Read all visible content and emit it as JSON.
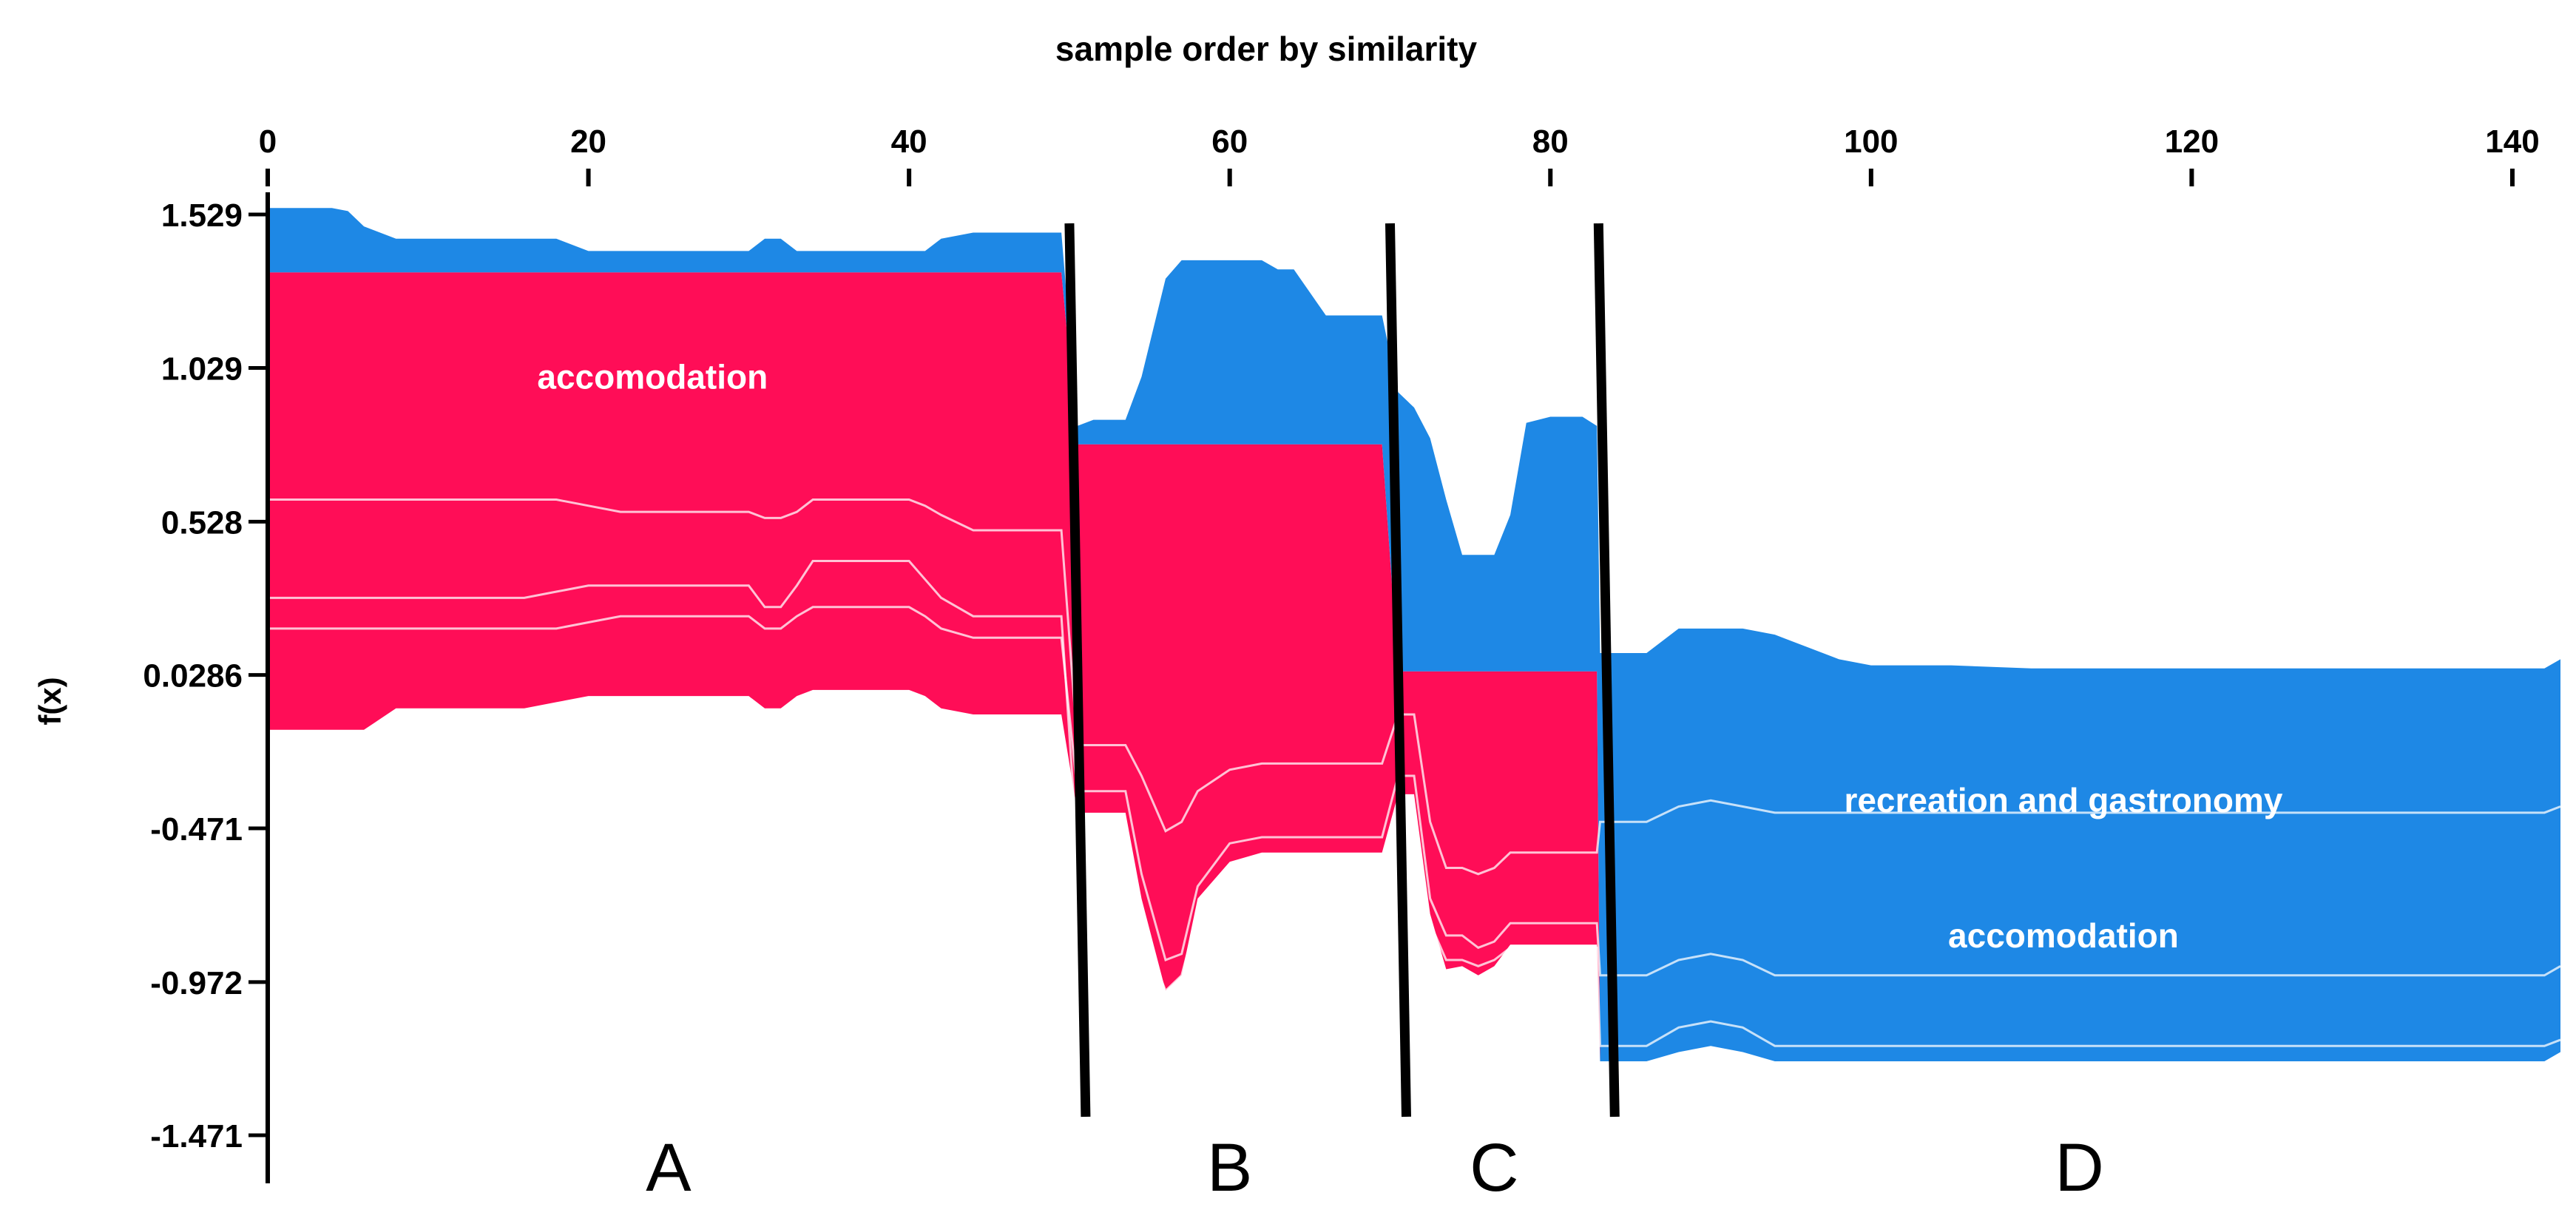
{
  "chart_data": {
    "type": "area",
    "title": "sample order by similarity",
    "xlabel": "",
    "ylabel": "f(x)",
    "xlim": [
      0,
      143
    ],
    "ylim": [
      -1.471,
      1.529
    ],
    "x_ticks": [
      0,
      20,
      40,
      60,
      80,
      100,
      120,
      140
    ],
    "y_ticks": [
      "1.529",
      "1.029",
      "0.528",
      "0.0286",
      "-0.471",
      "-0.972",
      "-1.471"
    ],
    "y_tick_values": [
      1.529,
      1.029,
      0.528,
      0.0286,
      -0.471,
      -0.972,
      -1.471
    ],
    "colors": {
      "positive": "#ff0d57",
      "negative": "#1e88e5",
      "separator": "#ffffff"
    },
    "x": [
      0,
      2,
      4,
      5,
      6,
      8,
      12,
      16,
      18,
      20,
      22,
      24,
      26,
      28,
      30,
      31,
      32,
      33,
      34,
      36,
      38,
      40,
      41,
      42,
      44,
      46,
      48,
      49.5,
      50.5,
      51.5,
      52.5,
      53.5,
      54.5,
      56,
      57,
      58,
      60,
      62,
      63,
      64,
      66,
      68,
      69.5,
      70.5,
      71.5,
      72.5,
      73.5,
      74.5,
      75.5,
      76.5,
      77.5,
      78.5,
      80,
      82,
      82.9,
      83.1,
      84,
      86,
      88,
      90,
      92,
      94,
      96,
      98,
      100,
      105,
      110,
      115,
      120,
      125,
      130,
      135,
      140,
      142,
      143
    ],
    "series": [
      {
        "name": "positive_upper",
        "values": [
          1.34,
          1.34,
          1.34,
          1.34,
          1.34,
          1.34,
          1.34,
          1.34,
          1.34,
          1.34,
          1.34,
          1.34,
          1.34,
          1.34,
          1.34,
          1.34,
          1.34,
          1.34,
          1.34,
          1.34,
          1.34,
          1.34,
          1.34,
          1.34,
          1.34,
          1.34,
          1.34,
          1.34,
          0.78,
          0.78,
          0.78,
          0.78,
          0.78,
          0.78,
          0.78,
          0.78,
          0.78,
          0.78,
          0.78,
          0.78,
          0.78,
          0.78,
          0.78,
          0.04,
          0.04,
          0.04,
          0.04,
          0.04,
          0.04,
          0.04,
          0.04,
          0.04,
          0.04,
          0.04,
          0.04,
          -1.23,
          -1.23,
          -1.23,
          -1.2,
          -1.18,
          -1.2,
          -1.23,
          -1.23,
          -1.23,
          -1.23,
          -1.23,
          -1.23,
          -1.23,
          -1.23,
          -1.23,
          -1.23,
          -1.23,
          -1.23,
          -1.23,
          -1.2
        ]
      },
      {
        "name": "f(x)",
        "values": [
          1.34,
          1.34,
          1.34,
          1.34,
          1.34,
          1.34,
          1.34,
          1.34,
          1.34,
          1.34,
          1.34,
          1.34,
          1.34,
          1.34,
          1.34,
          1.34,
          1.34,
          1.34,
          1.34,
          1.34,
          1.34,
          1.34,
          1.34,
          1.34,
          1.34,
          1.34,
          1.34,
          1.34,
          0.78,
          0.78,
          0.78,
          0.78,
          0.78,
          0.78,
          0.78,
          0.78,
          0.78,
          0.78,
          0.78,
          0.78,
          0.78,
          0.78,
          0.78,
          0.04,
          0.04,
          0.04,
          0.04,
          0.04,
          0.04,
          0.04,
          0.04,
          0.04,
          0.04,
          0.04,
          0.04,
          -1.23,
          -1.23,
          -1.23,
          -1.2,
          -1.18,
          -1.2,
          -1.23,
          -1.23,
          -1.23,
          -1.23,
          -1.23,
          -1.23,
          -1.23,
          -1.23,
          -1.23,
          -1.23,
          -1.23,
          -1.23,
          -1.23,
          -1.2
        ]
      },
      {
        "name": "negative_upper",
        "values": [
          1.55,
          1.55,
          1.55,
          1.54,
          1.49,
          1.45,
          1.45,
          1.45,
          1.45,
          1.41,
          1.41,
          1.41,
          1.41,
          1.41,
          1.41,
          1.45,
          1.45,
          1.41,
          1.41,
          1.41,
          1.41,
          1.41,
          1.41,
          1.45,
          1.47,
          1.47,
          1.47,
          1.47,
          0.84,
          0.86,
          0.86,
          0.86,
          1.0,
          1.32,
          1.38,
          1.38,
          1.38,
          1.38,
          1.35,
          1.35,
          1.2,
          1.2,
          1.2,
          0.95,
          0.9,
          0.8,
          0.6,
          0.42,
          0.42,
          0.42,
          0.55,
          0.85,
          0.87,
          0.87,
          0.84,
          0.1,
          0.1,
          0.1,
          0.18,
          0.18,
          0.18,
          0.16,
          0.12,
          0.08,
          0.06,
          0.06,
          0.05,
          0.05,
          0.05,
          0.05,
          0.05,
          0.05,
          0.05,
          0.05,
          0.08
        ]
      },
      {
        "name": "positive_lower",
        "values": [
          -0.15,
          -0.15,
          -0.15,
          -0.15,
          -0.15,
          -0.08,
          -0.08,
          -0.08,
          -0.06,
          -0.04,
          -0.04,
          -0.04,
          -0.04,
          -0.04,
          -0.04,
          -0.08,
          -0.08,
          -0.04,
          -0.02,
          -0.02,
          -0.02,
          -0.02,
          -0.04,
          -0.08,
          -0.1,
          -0.1,
          -0.1,
          -0.1,
          -0.42,
          -0.42,
          -0.42,
          -0.42,
          -0.7,
          -1.0,
          -0.95,
          -0.7,
          -0.58,
          -0.55,
          -0.55,
          -0.55,
          -0.55,
          -0.55,
          -0.55,
          -0.36,
          -0.36,
          -0.75,
          -0.93,
          -0.92,
          -0.95,
          -0.92,
          -0.85,
          -0.85,
          -0.85,
          -0.85,
          -0.85,
          -1.23,
          -1.23,
          -1.23,
          -1.2,
          -1.18,
          -1.2,
          -1.23,
          -1.23,
          -1.23,
          -1.23,
          -1.23,
          -1.23,
          -1.23,
          -1.23,
          -1.23,
          -1.23,
          -1.23,
          -1.23,
          -1.23,
          -1.2
        ]
      },
      {
        "name": "negative_lower",
        "values": [
          1.34,
          1.34,
          1.34,
          1.34,
          1.34,
          1.34,
          1.34,
          1.34,
          1.34,
          1.34,
          1.34,
          1.34,
          1.34,
          1.34,
          1.34,
          1.34,
          1.34,
          1.34,
          1.34,
          1.34,
          1.34,
          1.34,
          1.34,
          1.34,
          1.34,
          1.34,
          1.34,
          1.34,
          -0.42,
          -0.42,
          -0.42,
          -0.42,
          -0.42,
          -0.42,
          -0.42,
          -0.42,
          -0.42,
          -0.42,
          -0.42,
          -0.42,
          -0.42,
          -0.42,
          -0.42,
          -0.36,
          -0.36,
          -0.36,
          -0.36,
          -0.36,
          -0.36,
          -0.36,
          -0.36,
          -0.36,
          -0.36,
          -0.36,
          -0.36,
          -1.23,
          -1.23,
          -1.23,
          -1.2,
          -1.18,
          -1.2,
          -1.23,
          -1.23,
          -1.23,
          -1.23,
          -1.23,
          -1.23,
          -1.23,
          -1.23,
          -1.23,
          -1.23,
          -1.23,
          -1.23,
          -1.23,
          -1.2
        ]
      }
    ],
    "contribution_lines": [
      [
        0.28,
        0.28,
        0.28,
        0.28,
        0.28,
        0.28,
        0.28,
        0.28,
        0.3,
        0.32,
        0.32,
        0.32,
        0.32,
        0.32,
        0.32,
        0.25,
        0.25,
        0.32,
        0.4,
        0.4,
        0.4,
        0.4,
        0.34,
        0.28,
        0.22,
        0.22,
        0.22,
        0.22,
        -0.55,
        -0.55,
        -0.55,
        -0.55,
        -0.8,
        -1.0,
        -0.95,
        -0.75,
        -0.63,
        -0.6,
        -0.6,
        -0.6,
        -0.6,
        -0.6,
        -0.6,
        -0.42,
        -0.42,
        -0.78,
        -0.9,
        -0.9,
        -0.92,
        -0.9,
        -0.86,
        -0.86,
        -0.86,
        -0.86,
        -0.86,
        -1.18,
        -1.18,
        -1.18,
        -1.12,
        -1.1,
        -1.12,
        -1.18,
        -1.18,
        -1.18,
        -1.18,
        -1.18,
        -1.18,
        -1.18,
        -1.18,
        -1.18,
        -1.18,
        -1.18,
        -1.18,
        -1.18,
        -1.16
      ],
      [
        0.18,
        0.18,
        0.18,
        0.18,
        0.18,
        0.18,
        0.18,
        0.18,
        0.18,
        0.2,
        0.22,
        0.22,
        0.22,
        0.22,
        0.22,
        0.18,
        0.18,
        0.22,
        0.25,
        0.25,
        0.25,
        0.25,
        0.22,
        0.18,
        0.15,
        0.15,
        0.15,
        0.15,
        -0.35,
        -0.35,
        -0.35,
        -0.35,
        -0.62,
        -0.9,
        -0.88,
        -0.66,
        -0.52,
        -0.5,
        -0.5,
        -0.5,
        -0.5,
        -0.5,
        -0.5,
        -0.3,
        -0.3,
        -0.7,
        -0.82,
        -0.82,
        -0.86,
        -0.84,
        -0.78,
        -0.78,
        -0.78,
        -0.78,
        -0.78,
        -0.95,
        -0.95,
        -0.95,
        -0.9,
        -0.88,
        -0.9,
        -0.95,
        -0.95,
        -0.95,
        -0.95,
        -0.95,
        -0.95,
        -0.95,
        -0.95,
        -0.95,
        -0.95,
        -0.95,
        -0.95,
        -0.95,
        -0.92
      ],
      [
        0.6,
        0.6,
        0.6,
        0.6,
        0.6,
        0.6,
        0.6,
        0.6,
        0.6,
        0.58,
        0.56,
        0.56,
        0.56,
        0.56,
        0.56,
        0.54,
        0.54,
        0.56,
        0.6,
        0.6,
        0.6,
        0.6,
        0.58,
        0.55,
        0.5,
        0.5,
        0.5,
        0.5,
        -0.2,
        -0.2,
        -0.2,
        -0.2,
        -0.3,
        -0.48,
        -0.45,
        -0.35,
        -0.28,
        -0.26,
        -0.26,
        -0.26,
        -0.26,
        -0.26,
        -0.26,
        -0.1,
        -0.1,
        -0.45,
        -0.6,
        -0.6,
        -0.62,
        -0.6,
        -0.55,
        -0.55,
        -0.55,
        -0.55,
        -0.55,
        -0.45,
        -0.45,
        -0.45,
        -0.4,
        -0.38,
        -0.4,
        -0.42,
        -0.42,
        -0.42,
        -0.42,
        -0.42,
        -0.42,
        -0.42,
        -0.42,
        -0.42,
        -0.42,
        -0.42,
        -0.42,
        -0.42,
        -0.4
      ]
    ],
    "segments": [
      {
        "label": "A",
        "x_from": 0,
        "x_to": 50
      },
      {
        "label": "B",
        "x_from": 50,
        "x_to": 70
      },
      {
        "label": "C",
        "x_from": 70,
        "x_to": 83
      },
      {
        "label": "D",
        "x_from": 83,
        "x_to": 143
      }
    ],
    "annotations": [
      {
        "text": "accomodation",
        "x": 24,
        "y": 1.0,
        "color": "#ffffff"
      },
      {
        "text": "recreation and gastronomy",
        "x": 112,
        "y": -0.38,
        "color": "#ffffff"
      },
      {
        "text": "accomodation",
        "x": 112,
        "y": -0.82,
        "color": "#ffffff"
      }
    ]
  }
}
